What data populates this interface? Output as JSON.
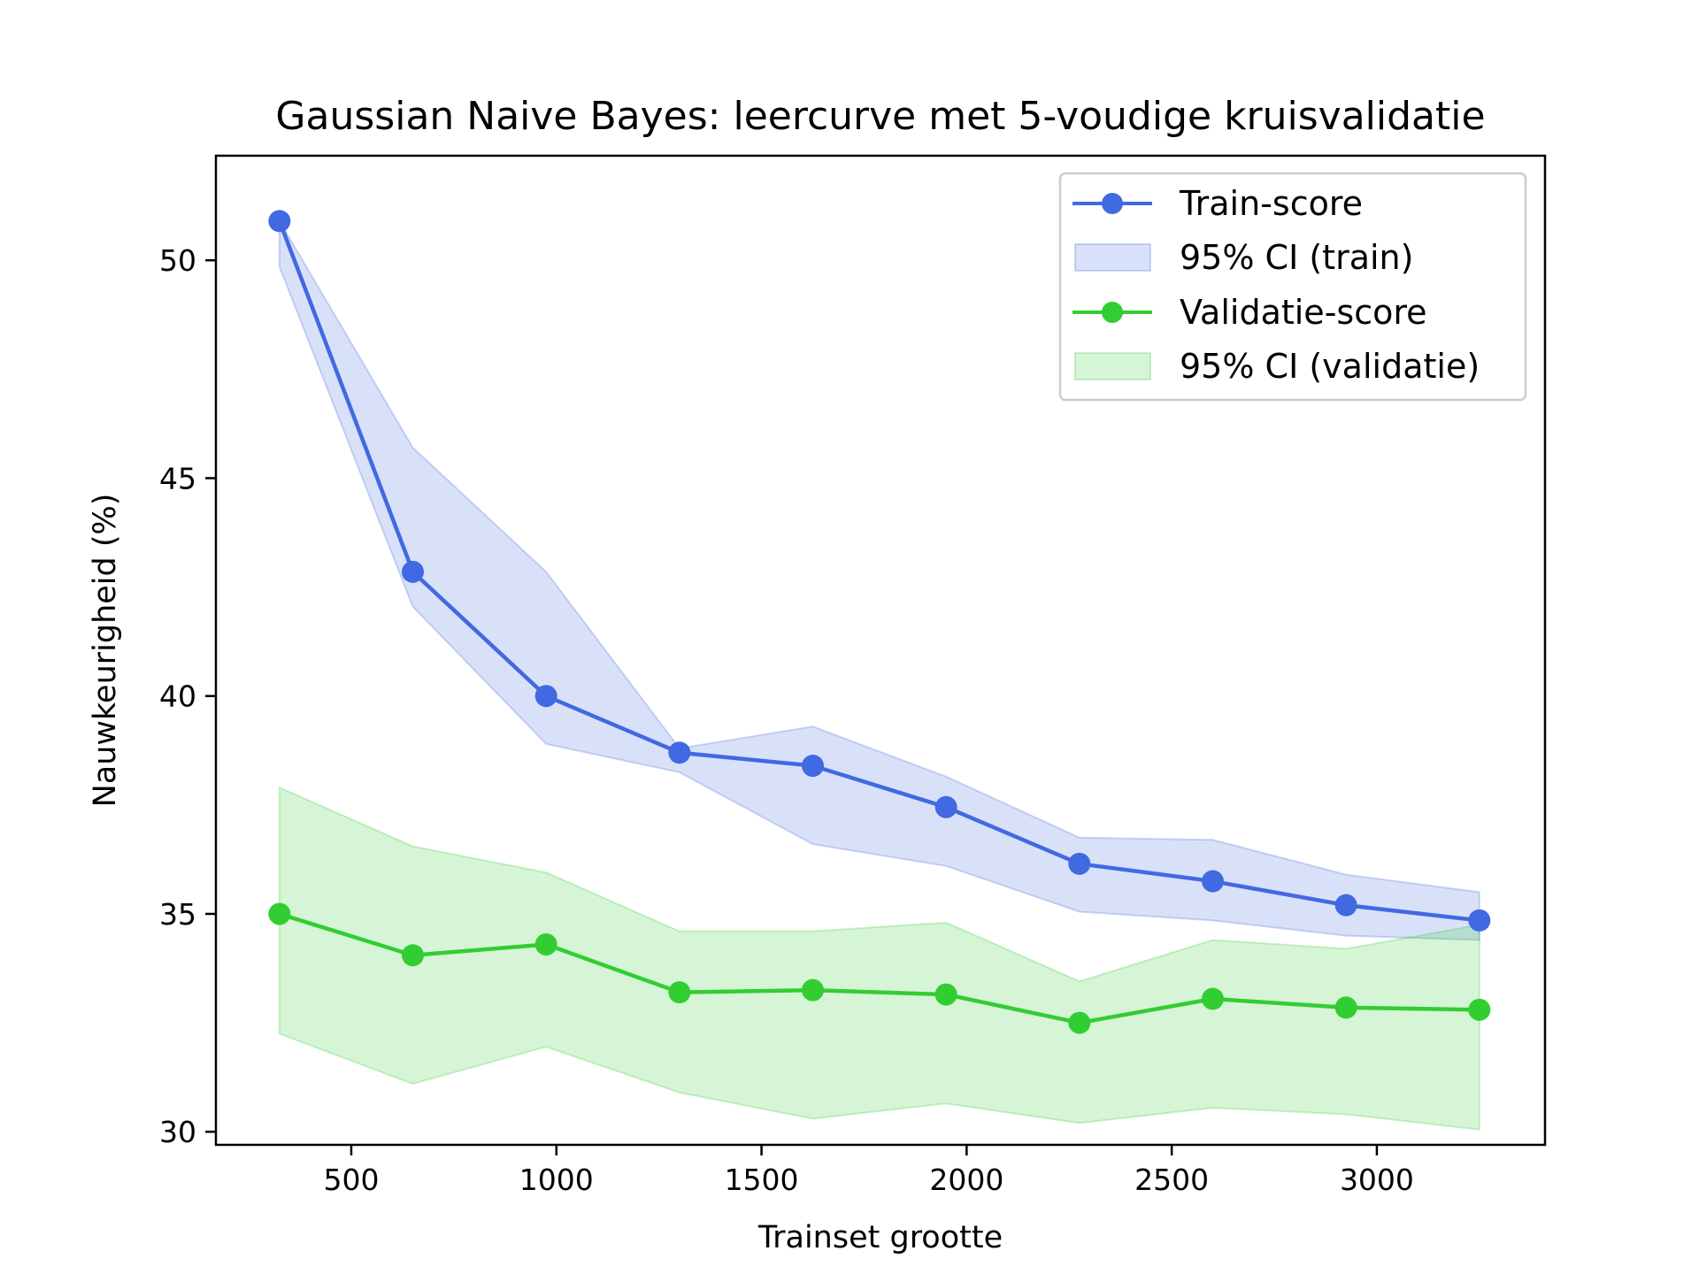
{
  "chart_data": {
    "type": "line",
    "title": "Gaussian Naive Bayes: leercurve met 5-voudige kruisvalidatie",
    "xlabel": "Trainset grootte",
    "ylabel": "Nauwkeurigheid (%)",
    "xlim": [
      170,
      3410
    ],
    "ylim": [
      29.7,
      52.4
    ],
    "xticks": [
      500,
      1000,
      1500,
      2000,
      2500,
      3000
    ],
    "yticks": [
      30,
      35,
      40,
      45,
      50
    ],
    "legend_position": "top-right",
    "grid": false,
    "x": [
      325,
      650,
      975,
      1300,
      1625,
      1950,
      2275,
      2600,
      2925,
      3250
    ],
    "series": [
      {
        "name": "Train-score",
        "color": "#4169E1",
        "values": [
          50.9,
          42.85,
          40.0,
          38.7,
          38.4,
          37.45,
          36.15,
          35.75,
          35.2,
          34.85
        ],
        "ci_label": "95% CI (train)",
        "ci_lower": [
          49.85,
          42.05,
          38.9,
          38.25,
          36.6,
          36.1,
          35.05,
          34.85,
          34.5,
          34.4
        ],
        "ci_upper": [
          50.9,
          45.7,
          42.85,
          38.8,
          39.3,
          38.15,
          36.75,
          36.7,
          35.9,
          35.5
        ]
      },
      {
        "name": "Validatie-score",
        "color": "#32CD32",
        "values": [
          35.0,
          34.05,
          34.3,
          33.2,
          33.25,
          33.15,
          32.5,
          33.05,
          32.85,
          32.8
        ],
        "ci_label": "95% CI (validatie)",
        "ci_lower": [
          32.25,
          31.1,
          31.95,
          30.9,
          30.3,
          30.65,
          30.2,
          30.55,
          30.4,
          30.05
        ],
        "ci_upper": [
          37.9,
          36.55,
          35.95,
          34.6,
          34.6,
          34.8,
          33.45,
          34.4,
          34.2,
          34.75
        ]
      }
    ]
  }
}
